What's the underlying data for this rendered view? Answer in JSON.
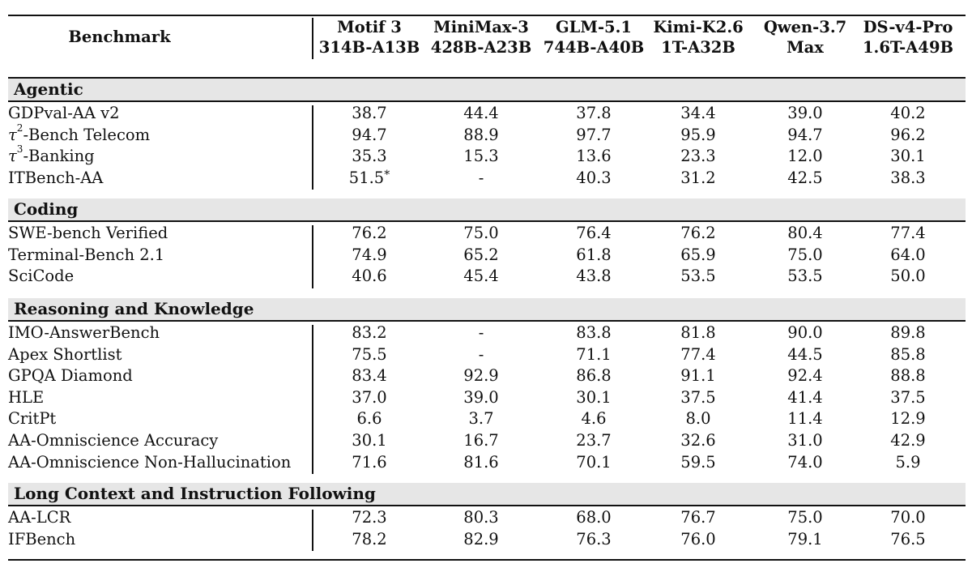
{
  "header": {
    "benchmark_label": "Benchmark",
    "models": [
      {
        "line1": "Motif 3",
        "line2": "314B-A13B"
      },
      {
        "line1": "MiniMax-3",
        "line2": "428B-A23B"
      },
      {
        "line1": "GLM-5.1",
        "line2": "744B-A40B"
      },
      {
        "line1": "Kimi-K2.6",
        "line2": "1T-A32B"
      },
      {
        "line1": "Qwen-3.7",
        "line2": "Max"
      },
      {
        "line1": "DS-v4-Pro",
        "line2": "1.6T-A49B"
      }
    ]
  },
  "sections": [
    {
      "title": "Agentic",
      "rows": [
        {
          "name": "GDPval-AA v2",
          "values": [
            "38.7",
            "44.4",
            "37.8",
            "34.4",
            "39.0",
            "40.2"
          ]
        },
        {
          "name_prefix": "τ",
          "name_sup": "2",
          "name": "-Bench Telecom",
          "values": [
            "94.7",
            "88.9",
            "97.7",
            "95.9",
            "94.7",
            "96.2"
          ]
        },
        {
          "name_prefix": "τ",
          "name_sup": "3",
          "name": "-Banking",
          "values": [
            "35.3",
            "15.3",
            "13.6",
            "23.3",
            "12.0",
            "30.1"
          ]
        },
        {
          "name": "ITBench-AA",
          "values": [
            "51.5*",
            "-",
            "40.3",
            "31.2",
            "42.5",
            "38.3"
          ]
        }
      ]
    },
    {
      "title": "Coding",
      "rows": [
        {
          "name": "SWE-bench Verified",
          "values": [
            "76.2",
            "75.0",
            "76.4",
            "76.2",
            "80.4",
            "77.4"
          ]
        },
        {
          "name": "Terminal-Bench 2.1",
          "values": [
            "74.9",
            "65.2",
            "61.8",
            "65.9",
            "75.0",
            "64.0"
          ]
        },
        {
          "name": "SciCode",
          "values": [
            "40.6",
            "45.4",
            "43.8",
            "53.5",
            "53.5",
            "50.0"
          ]
        }
      ]
    },
    {
      "title": "Reasoning and Knowledge",
      "rows": [
        {
          "name": "IMO-AnswerBench",
          "values": [
            "83.2",
            "-",
            "83.8",
            "81.8",
            "90.0",
            "89.8"
          ]
        },
        {
          "name": "Apex Shortlist",
          "values": [
            "75.5",
            "-",
            "71.1",
            "77.4",
            "44.5",
            "85.8"
          ]
        },
        {
          "name": "GPQA Diamond",
          "values": [
            "83.4",
            "92.9",
            "86.8",
            "91.1",
            "92.4",
            "88.8"
          ]
        },
        {
          "name": "HLE",
          "values": [
            "37.0",
            "39.0",
            "30.1",
            "37.5",
            "41.4",
            "37.5"
          ]
        },
        {
          "name": "CritPt",
          "values": [
            "6.6",
            "3.7",
            "4.6",
            "8.0",
            "11.4",
            "12.9"
          ]
        },
        {
          "name": "AA-Omniscience Accuracy",
          "values": [
            "30.1",
            "16.7",
            "23.7",
            "32.6",
            "31.0",
            "42.9"
          ]
        },
        {
          "name": "AA-Omniscience Non-Hallucination",
          "values": [
            "71.6",
            "81.6",
            "70.1",
            "59.5",
            "74.0",
            "5.9"
          ]
        }
      ]
    },
    {
      "title": "Long Context and Instruction Following",
      "rows": [
        {
          "name": "AA-LCR",
          "values": [
            "72.3",
            "80.3",
            "68.0",
            "76.7",
            "75.0",
            "70.0"
          ]
        },
        {
          "name": "IFBench",
          "values": [
            "78.2",
            "82.9",
            "76.3",
            "76.0",
            "79.1",
            "76.5"
          ]
        }
      ]
    }
  ]
}
